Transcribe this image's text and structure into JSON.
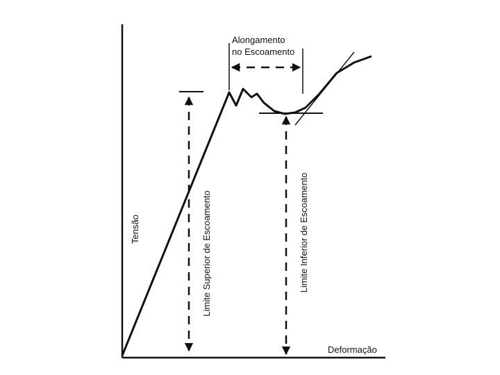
{
  "labels": {
    "elongation": [
      "Alongamento",
      "no Escoamento"
    ],
    "y_axis": "Tensão",
    "upper_yield": "Limite Superior de Escoamento",
    "lower_yield": "Limite Inferior de Escoamento",
    "x_axis": "Deformação"
  }
}
